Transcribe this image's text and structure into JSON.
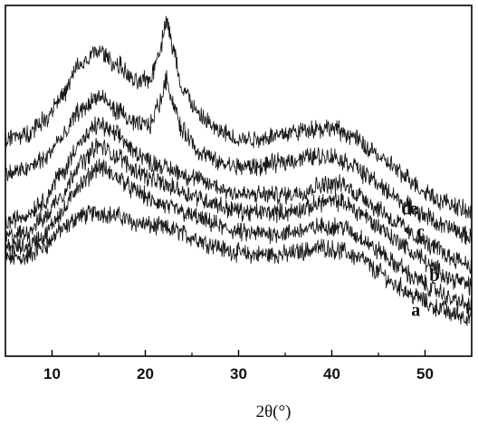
{
  "chart_data": {
    "type": "line",
    "title": "",
    "xlabel": "2θ(°)",
    "ylabel": "",
    "xlim": [
      5,
      55
    ],
    "ylim": [
      0,
      100
    ],
    "x_ticks": [
      10,
      20,
      30,
      40,
      50
    ],
    "y_ticks": [],
    "grid": false,
    "legend": "none",
    "line_color": "#1a1a1a",
    "series": [
      {
        "name": "a",
        "points": [
          [
            5,
            28
          ],
          [
            7,
            28
          ],
          [
            9,
            31
          ],
          [
            11,
            36
          ],
          [
            13,
            40
          ],
          [
            15,
            41
          ],
          [
            17,
            40
          ],
          [
            19,
            38
          ],
          [
            21,
            37
          ],
          [
            23,
            36
          ],
          [
            25,
            34
          ],
          [
            27,
            32
          ],
          [
            29,
            30
          ],
          [
            31,
            29
          ],
          [
            33,
            29
          ],
          [
            35,
            29
          ],
          [
            37,
            30
          ],
          [
            39,
            31
          ],
          [
            41,
            30
          ],
          [
            43,
            28
          ],
          [
            45,
            24
          ],
          [
            47,
            20
          ],
          [
            49,
            17
          ],
          [
            51,
            14
          ],
          [
            53,
            12
          ],
          [
            55,
            11
          ]
        ]
      },
      {
        "name": "b",
        "points": [
          [
            5,
            31
          ],
          [
            7,
            31
          ],
          [
            9,
            34
          ],
          [
            11,
            41
          ],
          [
            13,
            49
          ],
          [
            15,
            54
          ],
          [
            17,
            51
          ],
          [
            19,
            47
          ],
          [
            21,
            44
          ],
          [
            23,
            42
          ],
          [
            25,
            40
          ],
          [
            27,
            38
          ],
          [
            29,
            36
          ],
          [
            31,
            35
          ],
          [
            33,
            35
          ],
          [
            35,
            35
          ],
          [
            37,
            36
          ],
          [
            39,
            37
          ],
          [
            41,
            37
          ],
          [
            43,
            34
          ],
          [
            45,
            30
          ],
          [
            47,
            26
          ],
          [
            49,
            22
          ],
          [
            51,
            19
          ],
          [
            53,
            16
          ],
          [
            55,
            14
          ]
        ]
      },
      {
        "name": "c",
        "points": [
          [
            5,
            34
          ],
          [
            7,
            35
          ],
          [
            9,
            39
          ],
          [
            11,
            46
          ],
          [
            13,
            55
          ],
          [
            15,
            60
          ],
          [
            17,
            57
          ],
          [
            19,
            53
          ],
          [
            21,
            50
          ],
          [
            23,
            48
          ],
          [
            25,
            46
          ],
          [
            27,
            44
          ],
          [
            29,
            42
          ],
          [
            31,
            41
          ],
          [
            33,
            41
          ],
          [
            35,
            41
          ],
          [
            37,
            42
          ],
          [
            39,
            44
          ],
          [
            41,
            44
          ],
          [
            43,
            41
          ],
          [
            45,
            37
          ],
          [
            47,
            33
          ],
          [
            49,
            29
          ],
          [
            51,
            25
          ],
          [
            53,
            22
          ],
          [
            55,
            20
          ]
        ]
      },
      {
        "name": "d",
        "points": [
          [
            5,
            38
          ],
          [
            7,
            40
          ],
          [
            9,
            44
          ],
          [
            11,
            52
          ],
          [
            13,
            61
          ],
          [
            15,
            66
          ],
          [
            17,
            63
          ],
          [
            19,
            58
          ],
          [
            21,
            55
          ],
          [
            23,
            53
          ],
          [
            25,
            51
          ],
          [
            27,
            49
          ],
          [
            29,
            47
          ],
          [
            31,
            46
          ],
          [
            33,
            46
          ],
          [
            35,
            46
          ],
          [
            37,
            47
          ],
          [
            39,
            49
          ],
          [
            41,
            49
          ],
          [
            43,
            46
          ],
          [
            45,
            42
          ],
          [
            47,
            38
          ],
          [
            49,
            34
          ],
          [
            51,
            31
          ],
          [
            53,
            28
          ],
          [
            55,
            26
          ]
        ]
      },
      {
        "name": "e",
        "points": [
          [
            5,
            52
          ],
          [
            7,
            53
          ],
          [
            9,
            56
          ],
          [
            11,
            62
          ],
          [
            13,
            70
          ],
          [
            15,
            74
          ],
          [
            17,
            70
          ],
          [
            19,
            66
          ],
          [
            20.5,
            66
          ],
          [
            21.5,
            72
          ],
          [
            22.3,
            79
          ],
          [
            23,
            72
          ],
          [
            24,
            64
          ],
          [
            26,
            58
          ],
          [
            28,
            55
          ],
          [
            30,
            54
          ],
          [
            32,
            54
          ],
          [
            34,
            55
          ],
          [
            36,
            56
          ],
          [
            38,
            57
          ],
          [
            40,
            57
          ],
          [
            42,
            55
          ],
          [
            44,
            51
          ],
          [
            46,
            47
          ],
          [
            48,
            43
          ],
          [
            50,
            40
          ],
          [
            52,
            37
          ],
          [
            55,
            34
          ]
        ]
      },
      {
        "name": "",
        "points": [
          [
            5,
            62
          ],
          [
            7,
            63
          ],
          [
            9,
            67
          ],
          [
            11,
            74
          ],
          [
            13,
            83
          ],
          [
            15,
            87
          ],
          [
            17,
            83
          ],
          [
            19,
            78
          ],
          [
            20.5,
            79
          ],
          [
            21.5,
            87
          ],
          [
            22.3,
            96
          ],
          [
            23,
            87
          ],
          [
            24,
            76
          ],
          [
            26,
            68
          ],
          [
            28,
            64
          ],
          [
            30,
            62
          ],
          [
            32,
            62
          ],
          [
            34,
            63
          ],
          [
            36,
            64
          ],
          [
            38,
            65
          ],
          [
            40,
            65
          ],
          [
            42,
            63
          ],
          [
            44,
            59
          ],
          [
            46,
            55
          ],
          [
            48,
            51
          ],
          [
            50,
            47
          ],
          [
            52,
            44
          ],
          [
            55,
            41
          ]
        ]
      }
    ]
  }
}
